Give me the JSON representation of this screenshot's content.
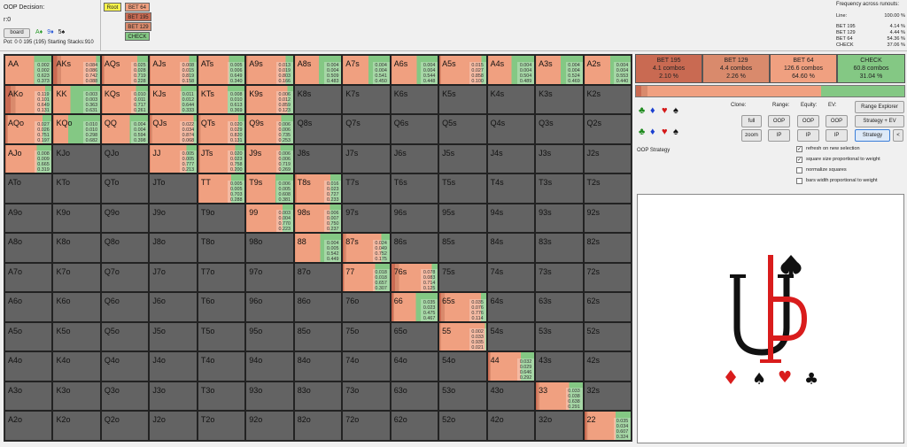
{
  "header": {
    "decision": "OOP Decision:",
    "coords": "r:0",
    "board_button": "board",
    "board_suits": [
      {
        "sym": "A♦",
        "color": "#2a9a2a"
      },
      {
        "sym": "9♦",
        "color": "#2a5ad8"
      },
      {
        "sym": "5♠",
        "color": "#111111"
      }
    ],
    "pot": "Pot: 0 0 195 (195) Starting Stacks:910",
    "tree": {
      "root": "Root",
      "actions": [
        "BET 64",
        "BET 195",
        "BET 129",
        "CHECK"
      ]
    },
    "freq_title": "Frequency across runouts:",
    "freq_rows": [
      {
        "label": "Line:",
        "value": "100.00 %"
      },
      {
        "label": "BET 195",
        "value": "4.14 %"
      },
      {
        "label": "BET 129",
        "value": "4.44 %"
      },
      {
        "label": "BET 64",
        "value": "54.36 %"
      },
      {
        "label": "CHECK",
        "value": "37.06 %"
      }
    ]
  },
  "colors": {
    "bet195": "#c96a52",
    "bet129": "#d98a6c",
    "bet64": "#f0a080",
    "check": "#84c884",
    "empty": "#636363"
  },
  "hand_cells": [
    {
      "row": 0,
      "col": 0,
      "name": "AA",
      "vals": [
        "0.002",
        "0.002",
        "0.623",
        "0.373"
      ]
    },
    {
      "row": 0,
      "col": 1,
      "name": "AKs",
      "vals": [
        "0.084",
        "0.086",
        "0.742",
        "0.088"
      ]
    },
    {
      "row": 0,
      "col": 2,
      "name": "AQs",
      "vals": [
        "0.025",
        "0.028",
        "0.719",
        "0.228"
      ]
    },
    {
      "row": 0,
      "col": 3,
      "name": "AJs",
      "vals": [
        "0.008",
        "0.015",
        "0.819",
        "0.158"
      ]
    },
    {
      "row": 0,
      "col": 4,
      "name": "ATs",
      "vals": [
        "0.005",
        "0.006",
        "0.649",
        "0.340"
      ]
    },
    {
      "row": 0,
      "col": 5,
      "name": "A9s",
      "vals": [
        "0.013",
        "0.019",
        "0.803",
        "0.166"
      ]
    },
    {
      "row": 0,
      "col": 6,
      "name": "A8s",
      "vals": [
        "0.004",
        "0.004",
        "0.509",
        "0.483"
      ]
    },
    {
      "row": 0,
      "col": 7,
      "name": "A7s",
      "vals": [
        "0.004",
        "0.004",
        "0.541",
        "0.450"
      ]
    },
    {
      "row": 0,
      "col": 8,
      "name": "A6s",
      "vals": [
        "0.004",
        "0.004",
        "0.544",
        "0.448"
      ]
    },
    {
      "row": 0,
      "col": 9,
      "name": "A5s",
      "vals": [
        "0.015",
        "0.027",
        "0.858",
        "0.100"
      ]
    },
    {
      "row": 0,
      "col": 10,
      "name": "A4s",
      "vals": [
        "0.004",
        "0.004",
        "0.504",
        "0.489"
      ]
    },
    {
      "row": 0,
      "col": 11,
      "name": "A3s",
      "vals": [
        "0.004",
        "0.004",
        "0.524",
        "0.469"
      ]
    },
    {
      "row": 0,
      "col": 12,
      "name": "A2s",
      "vals": [
        "0.004",
        "0.004",
        "0.553",
        "0.440"
      ]
    },
    {
      "row": 1,
      "col": 0,
      "name": "AKo",
      "vals": [
        "0.119",
        "0.101",
        "0.649",
        "0.131"
      ]
    },
    {
      "row": 1,
      "col": 1,
      "name": "KK",
      "vals": [
        "0.003",
        "0.003",
        "0.363",
        "0.631"
      ]
    },
    {
      "row": 1,
      "col": 2,
      "name": "KQs",
      "vals": [
        "0.010",
        "0.011",
        "0.717",
        "0.261"
      ]
    },
    {
      "row": 1,
      "col": 3,
      "name": "KJs",
      "vals": [
        "0.011",
        "0.012",
        "0.644",
        "0.333"
      ]
    },
    {
      "row": 1,
      "col": 4,
      "name": "KTs",
      "vals": [
        "0.008",
        "0.010",
        "0.613",
        "0.369"
      ]
    },
    {
      "row": 1,
      "col": 5,
      "name": "K9s",
      "vals": [
        "0.006",
        "0.012",
        "0.859",
        "0.123"
      ]
    },
    {
      "row": 2,
      "col": 0,
      "name": "AQo",
      "vals": [
        "0.027",
        "0.026",
        "0.751",
        "0.197"
      ]
    },
    {
      "row": 2,
      "col": 1,
      "name": "KQo",
      "vals": [
        "0.010",
        "0.010",
        "0.298",
        "0.682"
      ]
    },
    {
      "row": 2,
      "col": 2,
      "name": "QQ",
      "vals": [
        "0.004",
        "0.004",
        "0.594",
        "0.398"
      ]
    },
    {
      "row": 2,
      "col": 3,
      "name": "QJs",
      "vals": [
        "0.022",
        "0.034",
        "0.874",
        "0.068"
      ]
    },
    {
      "row": 2,
      "col": 4,
      "name": "QTs",
      "vals": [
        "0.020",
        "0.029",
        "0.820",
        "0.131"
      ]
    },
    {
      "row": 2,
      "col": 5,
      "name": "Q9s",
      "vals": [
        "0.006",
        "0.006",
        "0.735",
        "0.253"
      ]
    },
    {
      "row": 3,
      "col": 0,
      "name": "AJo",
      "vals": [
        "0.008",
        "0.009",
        "0.665",
        "0.319"
      ]
    },
    {
      "row": 3,
      "col": 3,
      "name": "JJ",
      "vals": [
        "0.005",
        "0.005",
        "0.777",
        "0.213"
      ]
    },
    {
      "row": 3,
      "col": 4,
      "name": "JTs",
      "vals": [
        "0.020",
        "0.023",
        "0.758",
        "0.200"
      ]
    },
    {
      "row": 3,
      "col": 5,
      "name": "J9s",
      "vals": [
        "0.006",
        "0.006",
        "0.719",
        "0.269"
      ]
    },
    {
      "row": 4,
      "col": 4,
      "name": "TT",
      "vals": [
        "0.005",
        "0.005",
        "0.703",
        "0.288"
      ]
    },
    {
      "row": 4,
      "col": 5,
      "name": "T9s",
      "vals": [
        "0.006",
        "0.005",
        "0.608",
        "0.381"
      ]
    },
    {
      "row": 4,
      "col": 6,
      "name": "T8s",
      "vals": [
        "0.016",
        "0.023",
        "0.727",
        "0.233"
      ]
    },
    {
      "row": 5,
      "col": 5,
      "name": "99",
      "vals": [
        "0.003",
        "0.004",
        "0.770",
        "0.223"
      ]
    },
    {
      "row": 5,
      "col": 6,
      "name": "98s",
      "vals": [
        "0.006",
        "0.007",
        "0.750",
        "0.237"
      ]
    },
    {
      "row": 6,
      "col": 6,
      "name": "88",
      "vals": [
        "0.004",
        "0.005",
        "0.542",
        "0.449"
      ]
    },
    {
      "row": 6,
      "col": 7,
      "name": "87s",
      "vals": [
        "0.024",
        "0.049",
        "0.752",
        "0.175"
      ]
    },
    {
      "row": 7,
      "col": 7,
      "name": "77",
      "vals": [
        "0.018",
        "0.018",
        "0.657",
        "0.307"
      ]
    },
    {
      "row": 7,
      "col": 8,
      "name": "76s",
      "vals": [
        "0.078",
        "0.083",
        "0.714",
        "0.125"
      ]
    },
    {
      "row": 8,
      "col": 8,
      "name": "66",
      "vals": [
        "0.035",
        "0.023",
        "0.475",
        "0.467"
      ]
    },
    {
      "row": 8,
      "col": 9,
      "name": "65s",
      "vals": [
        "0.035",
        "0.076",
        "0.776",
        "0.114"
      ]
    },
    {
      "row": 9,
      "col": 9,
      "name": "55",
      "vals": [
        "0.002",
        "0.033",
        "0.935",
        "0.021"
      ]
    },
    {
      "row": 10,
      "col": 10,
      "name": "44",
      "vals": [
        "0.032",
        "0.029",
        "0.646",
        "0.292"
      ]
    },
    {
      "row": 11,
      "col": 11,
      "name": "33",
      "vals": [
        "0.033",
        "0.038",
        "0.638",
        "0.291"
      ]
    },
    {
      "row": 12,
      "col": 12,
      "name": "22",
      "vals": [
        "0.035",
        "0.034",
        "0.607",
        "0.324"
      ]
    }
  ],
  "empty_cells": [
    {
      "row": 1,
      "col": 6,
      "name": "K8s"
    },
    {
      "row": 1,
      "col": 7,
      "name": "K7s"
    },
    {
      "row": 1,
      "col": 8,
      "name": "K6s"
    },
    {
      "row": 1,
      "col": 9,
      "name": "K5s"
    },
    {
      "row": 1,
      "col": 10,
      "name": "K4s"
    },
    {
      "row": 1,
      "col": 11,
      "name": "K3s"
    },
    {
      "row": 1,
      "col": 12,
      "name": "K2s"
    },
    {
      "row": 2,
      "col": 6,
      "name": "Q8s"
    },
    {
      "row": 2,
      "col": 7,
      "name": "Q7s"
    },
    {
      "row": 2,
      "col": 8,
      "name": "Q6s"
    },
    {
      "row": 2,
      "col": 9,
      "name": "Q5s"
    },
    {
      "row": 2,
      "col": 10,
      "name": "Q4s"
    },
    {
      "row": 2,
      "col": 11,
      "name": "Q3s"
    },
    {
      "row": 2,
      "col": 12,
      "name": "Q2s"
    },
    {
      "row": 3,
      "col": 1,
      "name": "KJo"
    },
    {
      "row": 3,
      "col": 2,
      "name": "QJo"
    },
    {
      "row": 3,
      "col": 6,
      "name": "J8s"
    },
    {
      "row": 3,
      "col": 7,
      "name": "J7s"
    },
    {
      "row": 3,
      "col": 8,
      "name": "J6s"
    },
    {
      "row": 3,
      "col": 9,
      "name": "J5s"
    },
    {
      "row": 3,
      "col": 10,
      "name": "J4s"
    },
    {
      "row": 3,
      "col": 11,
      "name": "J3s"
    },
    {
      "row": 3,
      "col": 12,
      "name": "J2s"
    },
    {
      "row": 4,
      "col": 0,
      "name": "ATo"
    },
    {
      "row": 4,
      "col": 1,
      "name": "KTo"
    },
    {
      "row": 4,
      "col": 2,
      "name": "QTo"
    },
    {
      "row": 4,
      "col": 3,
      "name": "JTo"
    },
    {
      "row": 4,
      "col": 7,
      "name": "T7s"
    },
    {
      "row": 4,
      "col": 8,
      "name": "T6s"
    },
    {
      "row": 4,
      "col": 9,
      "name": "T5s"
    },
    {
      "row": 4,
      "col": 10,
      "name": "T4s"
    },
    {
      "row": 4,
      "col": 11,
      "name": "T3s"
    },
    {
      "row": 4,
      "col": 12,
      "name": "T2s"
    },
    {
      "row": 5,
      "col": 0,
      "name": "A9o"
    },
    {
      "row": 5,
      "col": 1,
      "name": "K9o"
    },
    {
      "row": 5,
      "col": 2,
      "name": "Q9o"
    },
    {
      "row": 5,
      "col": 3,
      "name": "J9o"
    },
    {
      "row": 5,
      "col": 4,
      "name": "T9o"
    },
    {
      "row": 5,
      "col": 7,
      "name": "97s"
    },
    {
      "row": 5,
      "col": 8,
      "name": "96s"
    },
    {
      "row": 5,
      "col": 9,
      "name": "95s"
    },
    {
      "row": 5,
      "col": 10,
      "name": "94s"
    },
    {
      "row": 5,
      "col": 11,
      "name": "93s"
    },
    {
      "row": 5,
      "col": 12,
      "name": "92s"
    },
    {
      "row": 6,
      "col": 0,
      "name": "A8o"
    },
    {
      "row": 6,
      "col": 1,
      "name": "K8o"
    },
    {
      "row": 6,
      "col": 2,
      "name": "Q8o"
    },
    {
      "row": 6,
      "col": 3,
      "name": "J8o"
    },
    {
      "row": 6,
      "col": 4,
      "name": "T8o"
    },
    {
      "row": 6,
      "col": 5,
      "name": "98o"
    },
    {
      "row": 6,
      "col": 8,
      "name": "86s"
    },
    {
      "row": 6,
      "col": 9,
      "name": "85s"
    },
    {
      "row": 6,
      "col": 10,
      "name": "84s"
    },
    {
      "row": 6,
      "col": 11,
      "name": "83s"
    },
    {
      "row": 6,
      "col": 12,
      "name": "82s"
    },
    {
      "row": 7,
      "col": 0,
      "name": "A7o"
    },
    {
      "row": 7,
      "col": 1,
      "name": "K7o"
    },
    {
      "row": 7,
      "col": 2,
      "name": "Q7o"
    },
    {
      "row": 7,
      "col": 3,
      "name": "J7o"
    },
    {
      "row": 7,
      "col": 4,
      "name": "T7o"
    },
    {
      "row": 7,
      "col": 5,
      "name": "97o"
    },
    {
      "row": 7,
      "col": 6,
      "name": "87o"
    },
    {
      "row": 7,
      "col": 9,
      "name": "75s"
    },
    {
      "row": 7,
      "col": 10,
      "name": "74s"
    },
    {
      "row": 7,
      "col": 11,
      "name": "73s"
    },
    {
      "row": 7,
      "col": 12,
      "name": "72s"
    },
    {
      "row": 8,
      "col": 0,
      "name": "A6o"
    },
    {
      "row": 8,
      "col": 1,
      "name": "K6o"
    },
    {
      "row": 8,
      "col": 2,
      "name": "Q6o"
    },
    {
      "row": 8,
      "col": 3,
      "name": "J6o"
    },
    {
      "row": 8,
      "col": 4,
      "name": "T6o"
    },
    {
      "row": 8,
      "col": 5,
      "name": "96o"
    },
    {
      "row": 8,
      "col": 6,
      "name": "86o"
    },
    {
      "row": 8,
      "col": 7,
      "name": "76o"
    },
    {
      "row": 8,
      "col": 10,
      "name": "64s"
    },
    {
      "row": 8,
      "col": 11,
      "name": "63s"
    },
    {
      "row": 8,
      "col": 12,
      "name": "62s"
    },
    {
      "row": 9,
      "col": 0,
      "name": "A5o"
    },
    {
      "row": 9,
      "col": 1,
      "name": "K5o"
    },
    {
      "row": 9,
      "col": 2,
      "name": "Q5o"
    },
    {
      "row": 9,
      "col": 3,
      "name": "J5o"
    },
    {
      "row": 9,
      "col": 4,
      "name": "T5o"
    },
    {
      "row": 9,
      "col": 5,
      "name": "95o"
    },
    {
      "row": 9,
      "col": 6,
      "name": "85o"
    },
    {
      "row": 9,
      "col": 7,
      "name": "75o"
    },
    {
      "row": 9,
      "col": 8,
      "name": "65o"
    },
    {
      "row": 9,
      "col": 10,
      "name": "54s"
    },
    {
      "row": 9,
      "col": 11,
      "name": "53s"
    },
    {
      "row": 9,
      "col": 12,
      "name": "52s"
    },
    {
      "row": 10,
      "col": 0,
      "name": "A4o"
    },
    {
      "row": 10,
      "col": 1,
      "name": "K4o"
    },
    {
      "row": 10,
      "col": 2,
      "name": "Q4o"
    },
    {
      "row": 10,
      "col": 3,
      "name": "J4o"
    },
    {
      "row": 10,
      "col": 4,
      "name": "T4o"
    },
    {
      "row": 10,
      "col": 5,
      "name": "94o"
    },
    {
      "row": 10,
      "col": 6,
      "name": "84o"
    },
    {
      "row": 10,
      "col": 7,
      "name": "74o"
    },
    {
      "row": 10,
      "col": 8,
      "name": "64o"
    },
    {
      "row": 10,
      "col": 9,
      "name": "54o"
    },
    {
      "row": 10,
      "col": 11,
      "name": "43s"
    },
    {
      "row": 10,
      "col": 12,
      "name": "42s"
    },
    {
      "row": 11,
      "col": 0,
      "name": "A3o"
    },
    {
      "row": 11,
      "col": 1,
      "name": "K3o"
    },
    {
      "row": 11,
      "col": 2,
      "name": "Q3o"
    },
    {
      "row": 11,
      "col": 3,
      "name": "J3o"
    },
    {
      "row": 11,
      "col": 4,
      "name": "T3o"
    },
    {
      "row": 11,
      "col": 5,
      "name": "93o"
    },
    {
      "row": 11,
      "col": 6,
      "name": "83o"
    },
    {
      "row": 11,
      "col": 7,
      "name": "73o"
    },
    {
      "row": 11,
      "col": 8,
      "name": "63o"
    },
    {
      "row": 11,
      "col": 9,
      "name": "53o"
    },
    {
      "row": 11,
      "col": 10,
      "name": "43o"
    },
    {
      "row": 11,
      "col": 12,
      "name": "32s"
    },
    {
      "row": 12,
      "col": 0,
      "name": "A2o"
    },
    {
      "row": 12,
      "col": 1,
      "name": "K2o"
    },
    {
      "row": 12,
      "col": 2,
      "name": "Q2o"
    },
    {
      "row": 12,
      "col": 3,
      "name": "J2o"
    },
    {
      "row": 12,
      "col": 4,
      "name": "T2o"
    },
    {
      "row": 12,
      "col": 5,
      "name": "92o"
    },
    {
      "row": 12,
      "col": 6,
      "name": "82o"
    },
    {
      "row": 12,
      "col": 7,
      "name": "72o"
    },
    {
      "row": 12,
      "col": 8,
      "name": "62o"
    },
    {
      "row": 12,
      "col": 9,
      "name": "52o"
    },
    {
      "row": 12,
      "col": 10,
      "name": "42o"
    },
    {
      "row": 12,
      "col": 11,
      "name": "32o"
    }
  ],
  "actions": [
    {
      "name": "BET 195",
      "combos": "4.1 combos",
      "pct": "2.10 %",
      "share": 0.021,
      "color": "#c96a52"
    },
    {
      "name": "BET 129",
      "combos": "4.4 combos",
      "pct": "2.26 %",
      "share": 0.0226,
      "color": "#d98a6c"
    },
    {
      "name": "BET 64",
      "combos": "126.6 combos",
      "pct": "64.60 %",
      "share": 0.646,
      "color": "#f0a080"
    },
    {
      "name": "CHECK",
      "combos": "60.8 combos",
      "pct": "31.04 %",
      "share": 0.3104,
      "color": "#84c884"
    }
  ],
  "controls": {
    "clone": "Clone:",
    "range": "Range:",
    "equity": "Equity:",
    "ev": "EV:",
    "full": "full",
    "zoom": "zoom",
    "oop": "OOP",
    "ip": "IP",
    "range_explorer": "Range Explorer",
    "strategy_ev": "Strategy + EV",
    "strategy": "Strategy",
    "back": "<",
    "suits": [
      {
        "sym": "♣",
        "color": "#1c8a1c"
      },
      {
        "sym": "♦",
        "color": "#1a3fd0"
      },
      {
        "sym": "♥",
        "color": "#d41818"
      },
      {
        "sym": "♠",
        "color": "#111111"
      }
    ]
  },
  "strategy_label": "OOP Strategy",
  "options": [
    {
      "label": "refresh on new selection",
      "checked": true
    },
    {
      "label": "square size proportional to weight",
      "checked": true
    },
    {
      "label": "normalize squares",
      "checked": false
    },
    {
      "label": "bars width proportional to weight",
      "checked": false
    }
  ]
}
